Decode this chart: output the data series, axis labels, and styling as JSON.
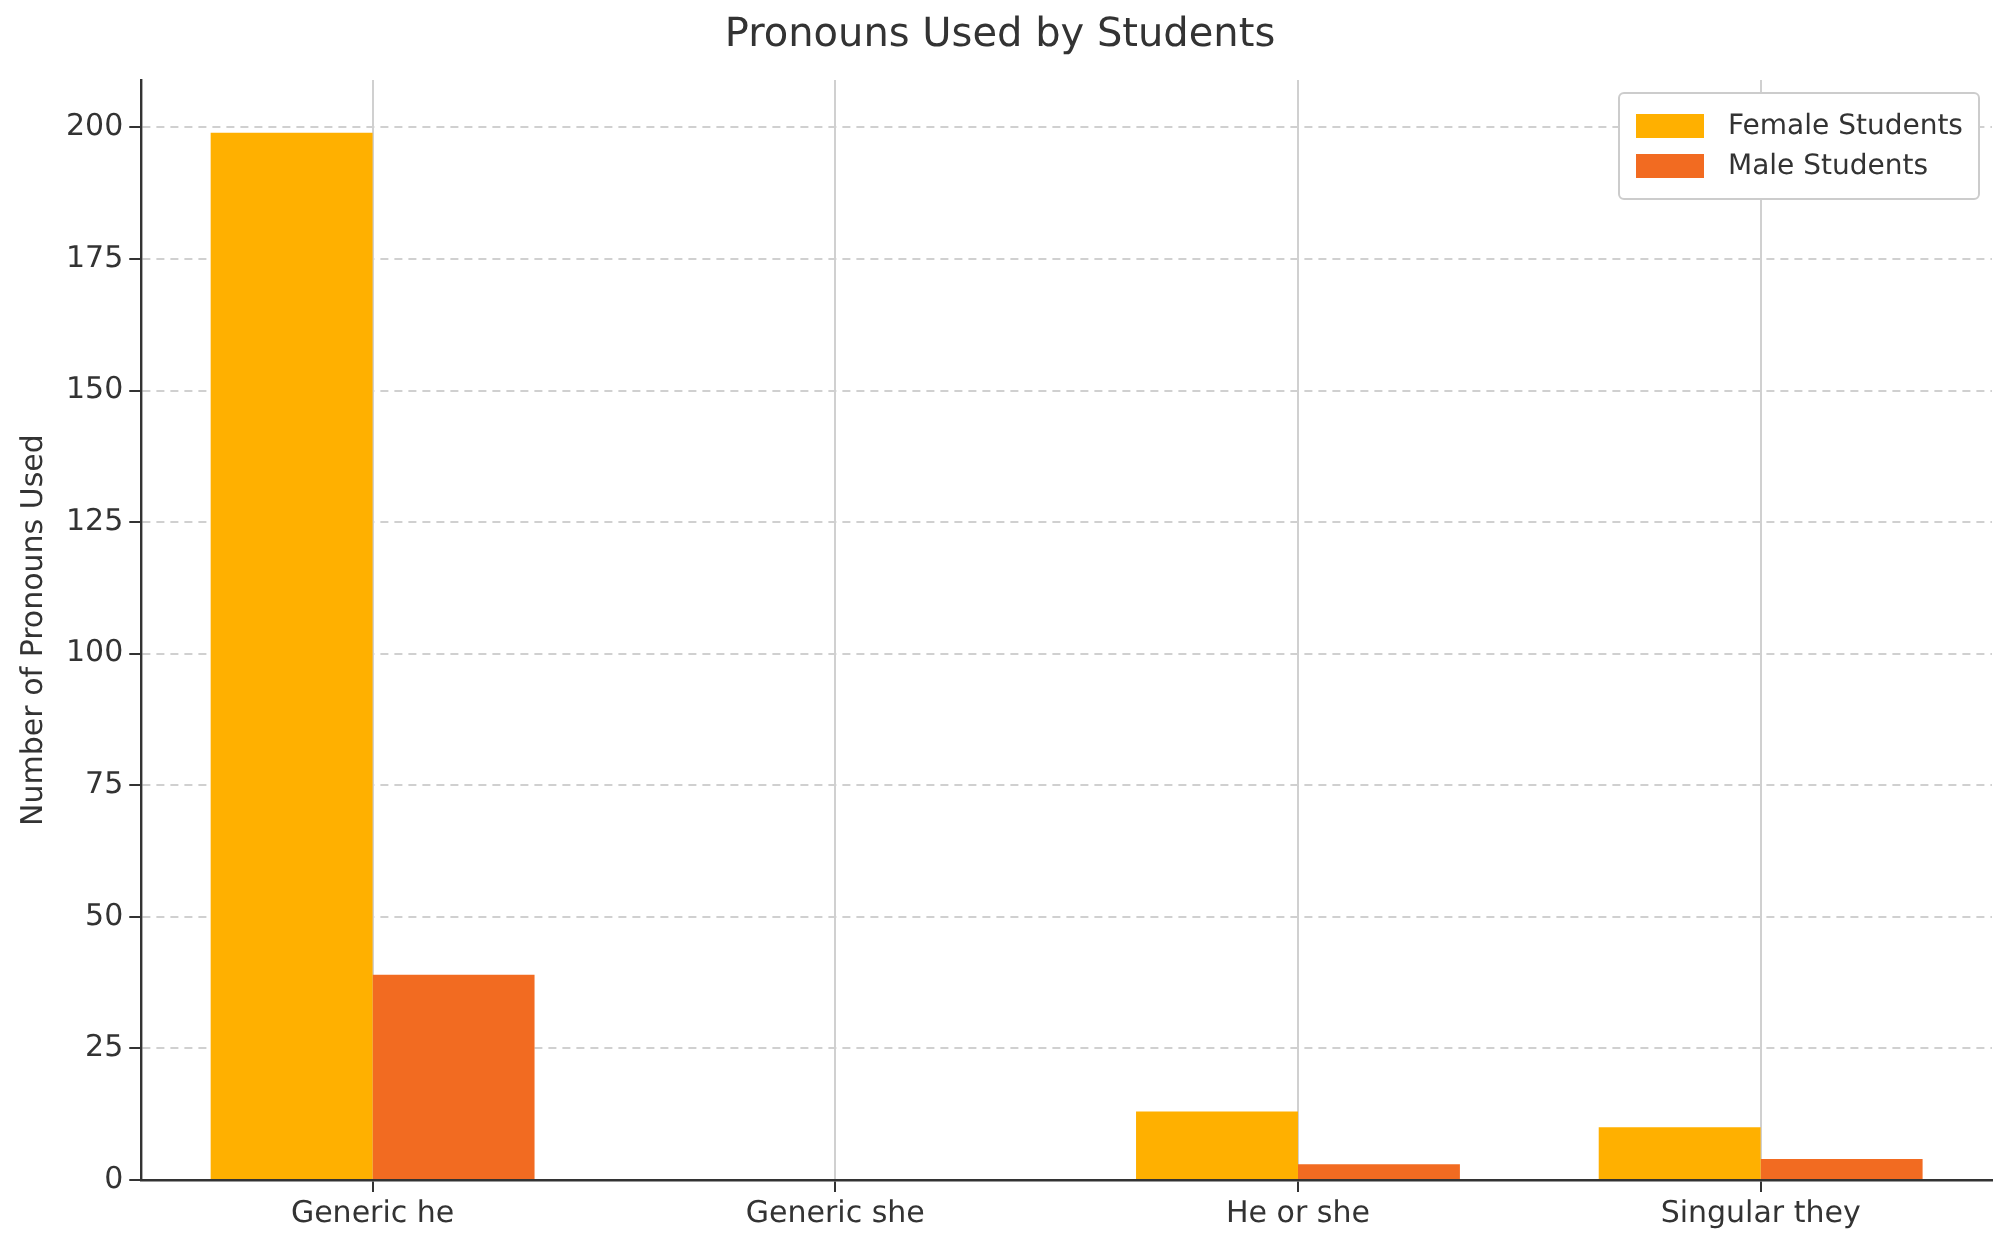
{
  "chart_data": {
    "type": "bar",
    "title": "Pronouns Used by Students",
    "ylabel": "Number of Pronouns Used",
    "categories": [
      "Generic he",
      "Generic she",
      "He or she",
      "Singular they"
    ],
    "series": [
      {
        "name": "Female Students",
        "color": "#ffb000",
        "values": [
          199,
          0,
          13,
          10
        ]
      },
      {
        "name": "Male Students",
        "color": "#f26b21",
        "values": [
          39,
          0,
          3,
          4
        ]
      }
    ],
    "ylim": [
      0,
      209
    ],
    "yticks": [
      0,
      25,
      50,
      75,
      100,
      125,
      150,
      175,
      200
    ],
    "grid": true,
    "legend": "top right"
  }
}
